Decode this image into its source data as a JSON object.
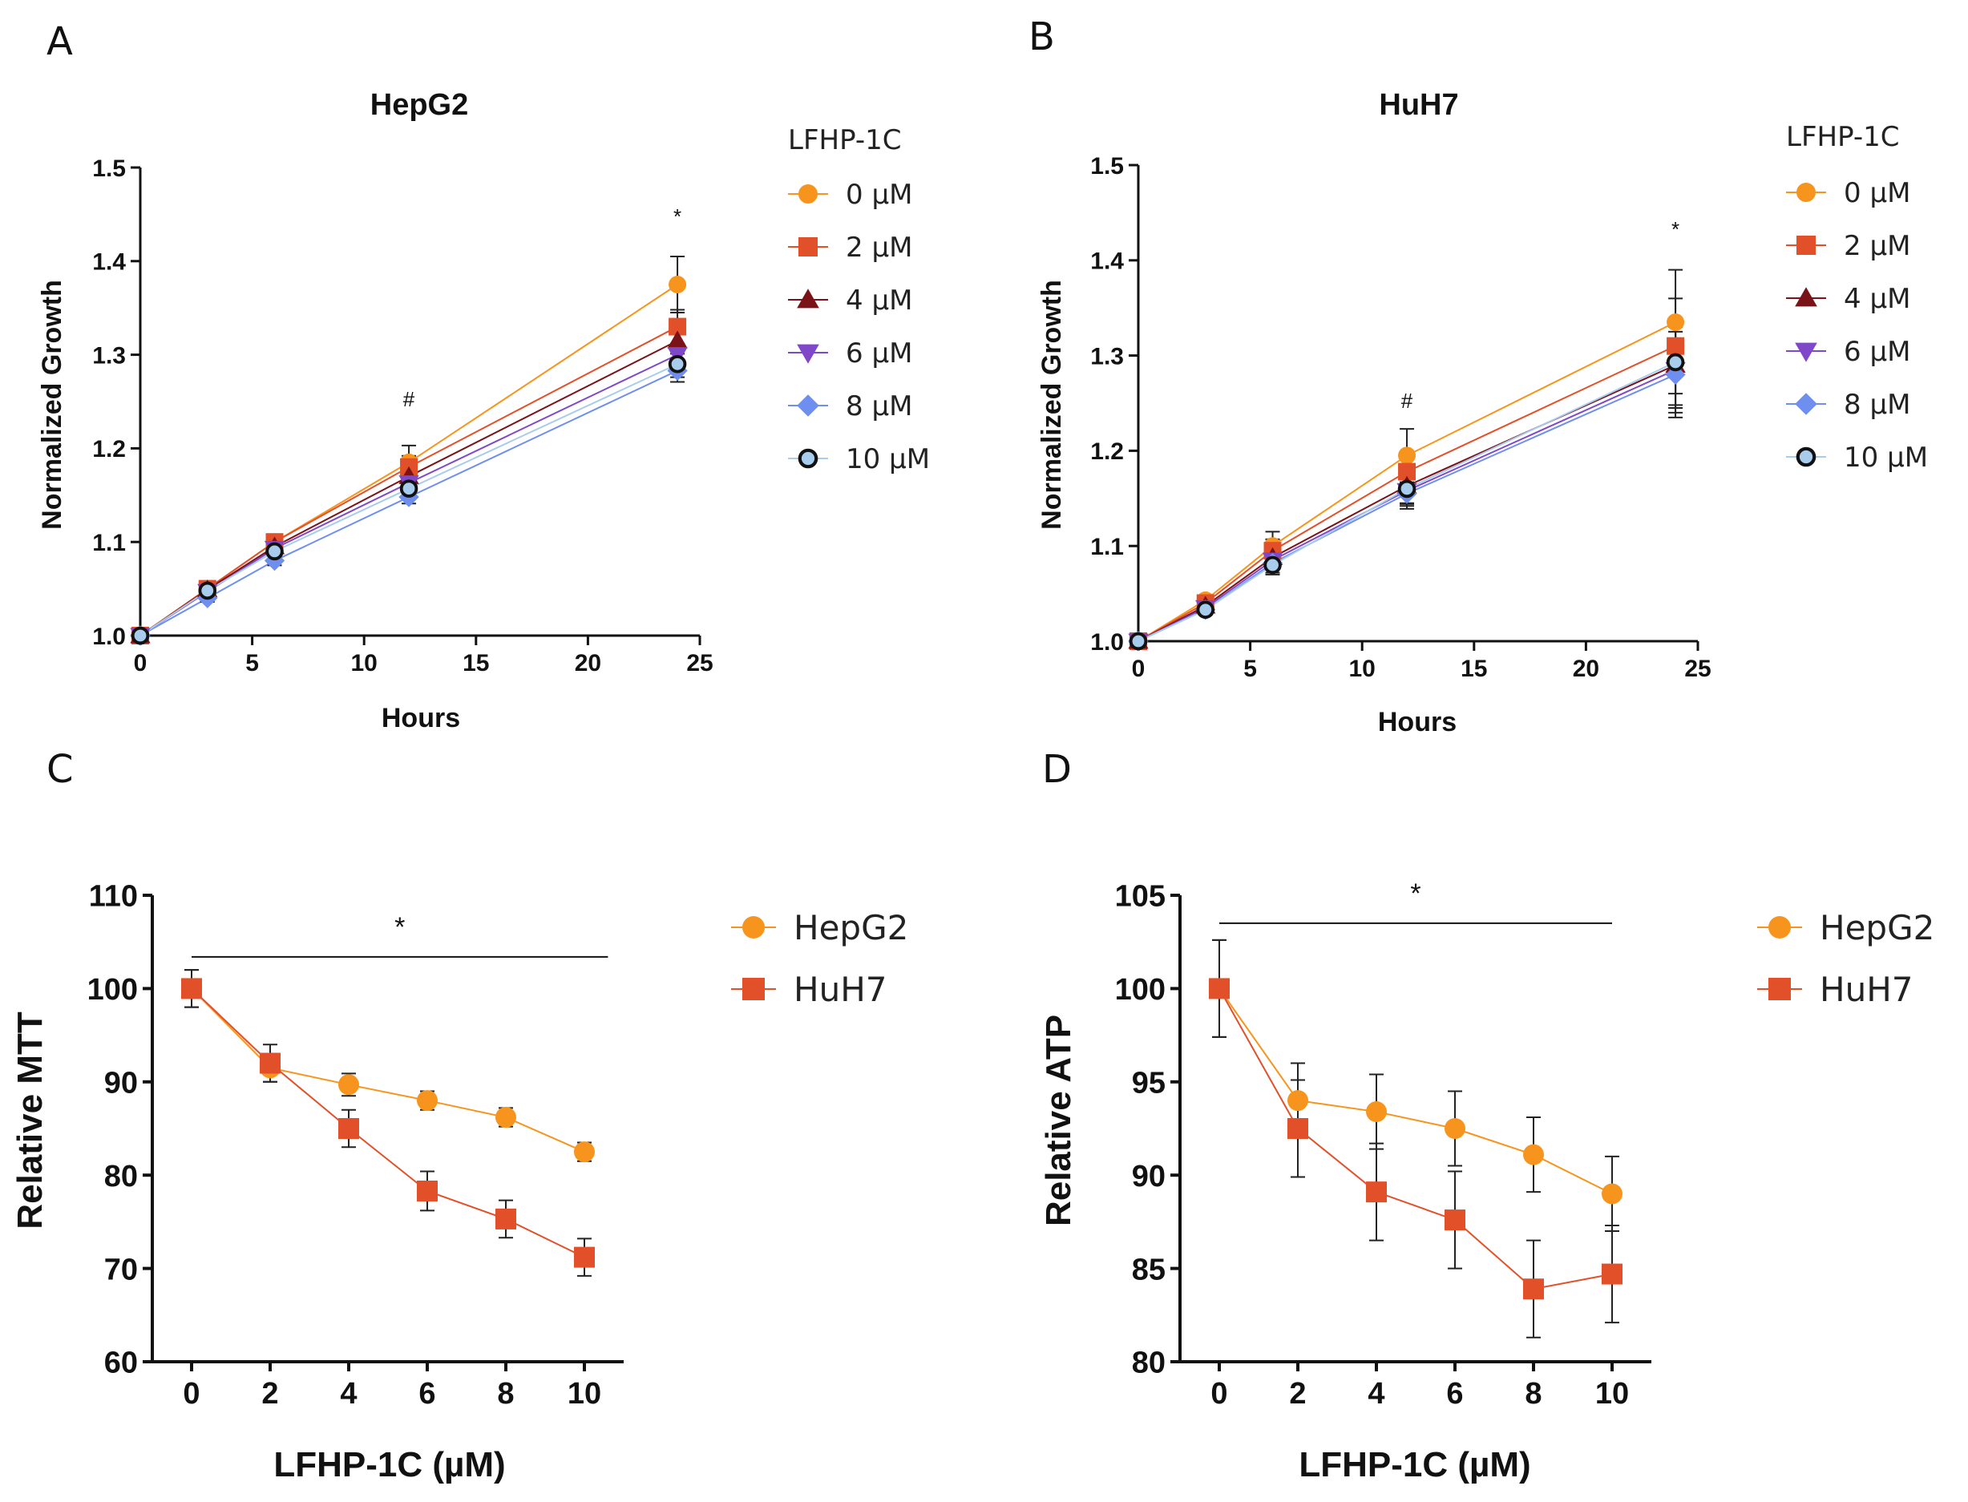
{
  "colors": {
    "orange": "#F7941D",
    "red": "#E2502A",
    "maroon": "#7A1218",
    "purple": "#7F48C8",
    "blue": "#6E8EF0",
    "light_blue": "#A8CCEB",
    "black": "#111111"
  },
  "chart_data": [
    {
      "panel": "A",
      "type": "line",
      "title": "HepG2",
      "xlabel": "Hours",
      "ylabel": "Normalized Growth",
      "xlim": [
        0,
        25
      ],
      "ylim": [
        1.0,
        1.5
      ],
      "x_ticks": [
        "0",
        "5",
        "10",
        "15",
        "20",
        "25"
      ],
      "y_ticks": [
        "1.0",
        "1.1",
        "1.2",
        "1.3",
        "1.4",
        "1.5"
      ],
      "legend_title": "LFHP-1C",
      "x": [
        0,
        3,
        6,
        12,
        24
      ],
      "series": [
        {
          "name": "0 µM",
          "marker": "circle",
          "color": "#F7941D",
          "values": [
            1.0,
            1.05,
            1.1,
            1.185,
            1.375
          ],
          "err": [
            0,
            0.004,
            0.006,
            0.018,
            0.03
          ]
        },
        {
          "name": "2 µM",
          "marker": "square",
          "color": "#E2502A",
          "values": [
            1.0,
            1.05,
            1.1,
            1.18,
            1.33
          ],
          "err": [
            0,
            0.004,
            0.006,
            0.012,
            0.018
          ]
        },
        {
          "name": "4 µM",
          "marker": "triangle-up",
          "color": "#7A1218",
          "values": [
            1.0,
            1.049,
            1.095,
            1.17,
            1.315
          ],
          "err": [
            0,
            0.004,
            0.005,
            0.01,
            0.014
          ]
        },
        {
          "name": "6 µM",
          "marker": "triangle-down",
          "color": "#7F48C8",
          "values": [
            1.0,
            1.047,
            1.093,
            1.163,
            1.3
          ],
          "err": [
            0,
            0.004,
            0.005,
            0.008,
            0.012
          ]
        },
        {
          "name": "8 µM",
          "marker": "diamond",
          "color": "#6E8EF0",
          "values": [
            1.0,
            1.04,
            1.08,
            1.148,
            1.283
          ],
          "err": [
            0,
            0.004,
            0.005,
            0.007,
            0.012
          ]
        },
        {
          "name": "10 µM",
          "marker": "ring",
          "color": "#A8CCEB",
          "values": [
            1.0,
            1.048,
            1.09,
            1.157,
            1.29
          ],
          "err": [
            0,
            0.004,
            0.005,
            0.008,
            0.014
          ]
        }
      ],
      "annotations": [
        {
          "text": "#",
          "x": 12,
          "y": 1.245
        },
        {
          "text": "*",
          "x": 24,
          "y": 1.44
        }
      ]
    },
    {
      "panel": "B",
      "type": "line",
      "title": "HuH7",
      "xlabel": "Hours",
      "ylabel": "Normalized Growth",
      "xlim": [
        0,
        25
      ],
      "ylim": [
        1.0,
        1.5
      ],
      "x_ticks": [
        "0",
        "5",
        "10",
        "15",
        "20",
        "25"
      ],
      "y_ticks": [
        "1.0",
        "1.1",
        "1.2",
        "1.3",
        "1.4",
        "1.5"
      ],
      "legend_title": "LFHP-1C",
      "x": [
        0,
        3,
        6,
        12,
        24
      ],
      "series": [
        {
          "name": "0 µM",
          "marker": "circle",
          "color": "#F7941D",
          "values": [
            1.0,
            1.043,
            1.1,
            1.195,
            1.335
          ],
          "err": [
            0,
            0.005,
            0.015,
            0.028,
            0.055
          ]
        },
        {
          "name": "2 µM",
          "marker": "square",
          "color": "#E2502A",
          "values": [
            1.0,
            1.04,
            1.095,
            1.178,
            1.31
          ],
          "err": [
            0,
            0.005,
            0.012,
            0.02,
            0.05
          ]
        },
        {
          "name": "4 µM",
          "marker": "triangle-up",
          "color": "#7A1218",
          "values": [
            1.0,
            1.037,
            1.088,
            1.163,
            1.29
          ],
          "err": [
            0,
            0.005,
            0.01,
            0.018,
            0.045
          ]
        },
        {
          "name": "6 µM",
          "marker": "triangle-down",
          "color": "#7F48C8",
          "values": [
            1.0,
            1.035,
            1.085,
            1.158,
            1.285
          ],
          "err": [
            0,
            0.005,
            0.01,
            0.016,
            0.045
          ]
        },
        {
          "name": "8 µM",
          "marker": "diamond",
          "color": "#6E8EF0",
          "values": [
            1.0,
            1.033,
            1.082,
            1.155,
            1.28
          ],
          "err": [
            0,
            0.005,
            0.01,
            0.016,
            0.045
          ]
        },
        {
          "name": "10 µM",
          "marker": "ring",
          "color": "#A8CCEB",
          "values": [
            1.0,
            1.033,
            1.08,
            1.16,
            1.293
          ],
          "err": [
            0,
            0.005,
            0.01,
            0.016,
            0.045
          ]
        }
      ],
      "annotations": [
        {
          "text": "#",
          "x": 12,
          "y": 1.245
        },
        {
          "text": "*",
          "x": 24,
          "y": 1.425
        }
      ]
    },
    {
      "panel": "C",
      "type": "line",
      "title": "",
      "xlabel": "LFHP-1C (µM)",
      "ylabel": "Relative MTT",
      "xlim": [
        -1,
        11
      ],
      "ylim": [
        60,
        110
      ],
      "x_ticks": [
        "0",
        "2",
        "4",
        "6",
        "8",
        "10"
      ],
      "y_ticks": [
        "60",
        "70",
        "80",
        "90",
        "100",
        "110"
      ],
      "x": [
        0,
        2,
        4,
        6,
        8,
        10
      ],
      "series": [
        {
          "name": "HepG2",
          "marker": "circle",
          "color": "#F7941D",
          "values": [
            100,
            91.5,
            89.7,
            88,
            86.2,
            82.5
          ],
          "err": [
            2,
            1.5,
            1.2,
            1,
            1,
            1
          ]
        },
        {
          "name": "HuH7",
          "marker": "square",
          "color": "#E2502A",
          "values": [
            100,
            92,
            85,
            78.3,
            75.3,
            71.2
          ],
          "err": [
            2,
            2,
            2,
            2.1,
            2,
            2
          ]
        }
      ],
      "significance_bar": {
        "text": "*",
        "x_start": 0,
        "x_end": 10.6,
        "y": 103.4
      }
    },
    {
      "panel": "D",
      "type": "line",
      "title": "",
      "xlabel": "LFHP-1C (µM)",
      "ylabel": "Relative ATP",
      "xlim": [
        -1,
        11
      ],
      "ylim": [
        80,
        105
      ],
      "x_ticks": [
        "0",
        "2",
        "4",
        "6",
        "8",
        "10"
      ],
      "y_ticks": [
        "80",
        "85",
        "90",
        "95",
        "100",
        "105"
      ],
      "x": [
        0,
        2,
        4,
        6,
        8,
        10
      ],
      "series": [
        {
          "name": "HepG2",
          "marker": "circle",
          "color": "#F7941D",
          "values": [
            100,
            94,
            93.4,
            92.5,
            91.1,
            89
          ],
          "err": [
            2.6,
            2,
            2,
            2,
            2,
            2
          ]
        },
        {
          "name": "HuH7",
          "marker": "square",
          "color": "#E2502A",
          "values": [
            100,
            92.5,
            89.1,
            87.6,
            83.9,
            84.7
          ],
          "err": [
            2.6,
            2.6,
            2.6,
            2.6,
            2.6,
            2.6
          ]
        }
      ],
      "significance_bar": {
        "text": "*",
        "x_start": 0,
        "x_end": 10,
        "y": 103.5
      }
    }
  ]
}
